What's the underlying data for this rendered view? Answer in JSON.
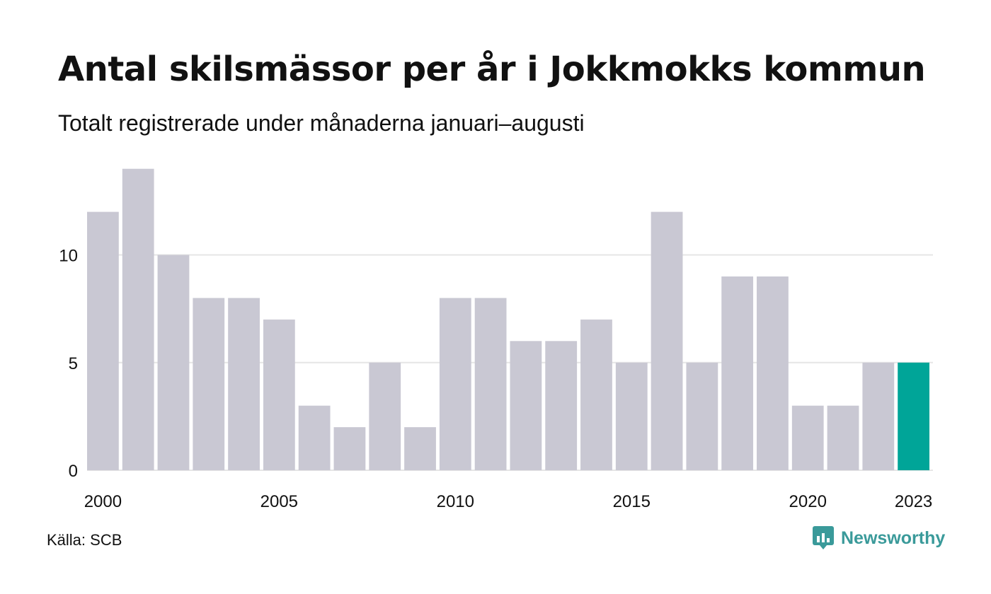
{
  "title": "Antal skilsmässor per år i Jokkmokks kommun",
  "subtitle": "Totalt registrerade under månaderna januari–augusti",
  "source": "Källa: SCB",
  "brand": {
    "name": "Newsworthy",
    "logo_icon": "newsworthy-logo-icon"
  },
  "colors": {
    "bar": "#c9c8d3",
    "highlight": "#00a598",
    "grid": "#e6e6e6",
    "brand": "#3a9a9a"
  },
  "chart_data": {
    "type": "bar",
    "title": "Antal skilsmässor per år i Jokkmokks kommun",
    "subtitle": "Totalt registrerade under månaderna januari–augusti",
    "categories": [
      2000,
      2001,
      2002,
      2003,
      2004,
      2005,
      2006,
      2007,
      2008,
      2009,
      2010,
      2011,
      2012,
      2013,
      2014,
      2015,
      2016,
      2017,
      2018,
      2019,
      2020,
      2021,
      2022,
      2023
    ],
    "values": [
      12,
      14,
      10,
      8,
      8,
      7,
      3,
      2,
      5,
      2,
      8,
      8,
      6,
      6,
      7,
      5,
      12,
      5,
      9,
      9,
      3,
      3,
      5,
      5
    ],
    "highlight_category": 2023,
    "x_tick_labels": [
      "2000",
      "2005",
      "2010",
      "2015",
      "2020",
      "2023"
    ],
    "y_ticks": [
      0,
      5,
      10
    ],
    "ylim": [
      0,
      14
    ],
    "xlabel": "",
    "ylabel": "",
    "grid": true,
    "legend": "none"
  }
}
